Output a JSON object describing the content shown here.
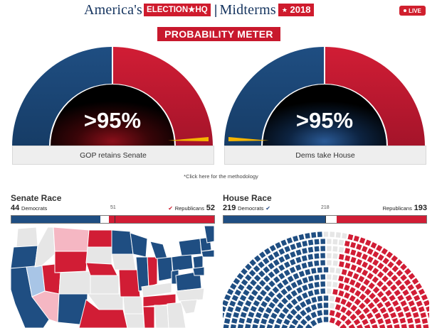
{
  "header": {
    "brand_left": "America's",
    "brand_box": "ELECTION★HQ",
    "brand_sep": "|",
    "brand_right": "Midterms",
    "year_star": "★",
    "year": "2018",
    "live": "LIVE"
  },
  "probability": {
    "title": "PROBABILITY METER",
    "senate": {
      "pct": ">95%",
      "label": "GOP retains Senate",
      "needle": "right"
    },
    "house": {
      "pct": ">95%",
      "label": "Dems take House",
      "needle": "left"
    },
    "methodology": "*Click here for the methodology"
  },
  "senate": {
    "title": "Senate Race",
    "dem_count": "44",
    "dem_label": "Democrats",
    "majority": "51",
    "rep_label": "Republicans",
    "rep_count": "52",
    "dem_seats": 44,
    "undecided_seats": 4,
    "rep_seats": 52,
    "total_seats": 100
  },
  "house": {
    "title": "House Race",
    "dem_count": "219",
    "dem_label": "Democrats",
    "majority": "218",
    "rep_label": "Republicans",
    "rep_count": "193",
    "dem_seats": 219,
    "undecided_seats": 23,
    "rep_seats": 193,
    "total_seats": 435
  },
  "colors": {
    "dem": "#1f4e82",
    "rep": "#d11d35",
    "brand_blue": "#15345f",
    "brand_red": "#cf1b2d",
    "lean_dem": "#a8c5e6",
    "lean_rep": "#f5b7c3",
    "no_race": "#e6e6e6",
    "needle": "#f4b400"
  }
}
